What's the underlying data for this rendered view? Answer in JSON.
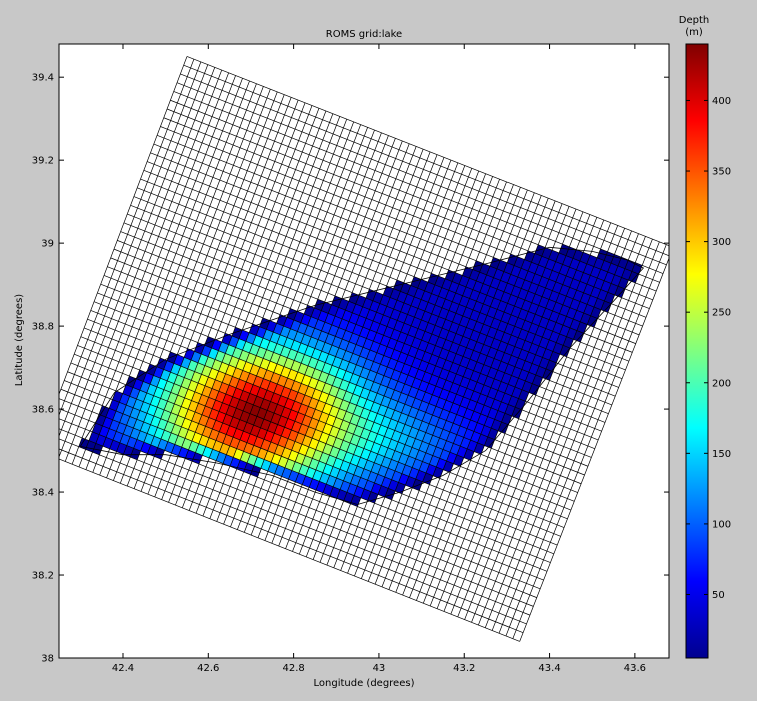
{
  "chart_data": {
    "type": "heatmap",
    "title": "ROMS grid:lake",
    "xlabel": "Longitude (degrees)",
    "ylabel": "Latitude (degrees)",
    "xlim": [
      42.25,
      43.68
    ],
    "ylim": [
      38.0,
      39.48
    ],
    "x_ticks": [
      42.4,
      42.6,
      42.8,
      43.0,
      43.2,
      43.4,
      43.6
    ],
    "x_tick_labels": [
      "42.4",
      "42.6",
      "42.8",
      "43",
      "43.2",
      "43.4",
      "43.6"
    ],
    "y_ticks": [
      38.0,
      38.2,
      38.4,
      38.6,
      38.8,
      39.0,
      39.2,
      39.4
    ],
    "y_tick_labels": [
      "38",
      "38.2",
      "38.4",
      "38.6",
      "38.8",
      "39",
      "39.2",
      "39.4"
    ],
    "grid": {
      "corners_lonlat": [
        [
          42.2,
          38.5
        ],
        [
          42.55,
          39.45
        ],
        [
          43.69,
          38.99
        ],
        [
          43.33,
          38.04
        ]
      ],
      "nx": 70,
      "ny": 45
    },
    "depth_field": {
      "min": 5,
      "max": 440,
      "deepest_point": [
        42.71,
        38.59
      ],
      "lake_outline": [
        [
          42.3,
          38.51
        ],
        [
          42.38,
          38.64
        ],
        [
          42.5,
          38.72
        ],
        [
          42.65,
          38.78
        ],
        [
          42.85,
          38.85
        ],
        [
          43.05,
          38.9
        ],
        [
          43.25,
          38.95
        ],
        [
          43.4,
          38.99
        ],
        [
          43.5,
          38.98
        ],
        [
          43.58,
          38.96
        ],
        [
          43.62,
          38.94
        ],
        [
          43.55,
          38.86
        ],
        [
          43.45,
          38.75
        ],
        [
          43.35,
          38.62
        ],
        [
          43.25,
          38.5
        ],
        [
          43.15,
          38.44
        ],
        [
          43.05,
          38.4
        ],
        [
          42.95,
          38.37
        ],
        [
          42.85,
          38.4
        ],
        [
          42.75,
          38.44
        ],
        [
          42.62,
          38.47
        ],
        [
          42.5,
          38.49
        ],
        [
          42.4,
          38.49
        ]
      ]
    },
    "colorbar": {
      "title": "Depth",
      "units": "(m)",
      "range": [
        5,
        440
      ],
      "ticks": [
        50,
        100,
        150,
        200,
        250,
        300,
        350,
        400
      ],
      "colormap": "jet"
    }
  }
}
